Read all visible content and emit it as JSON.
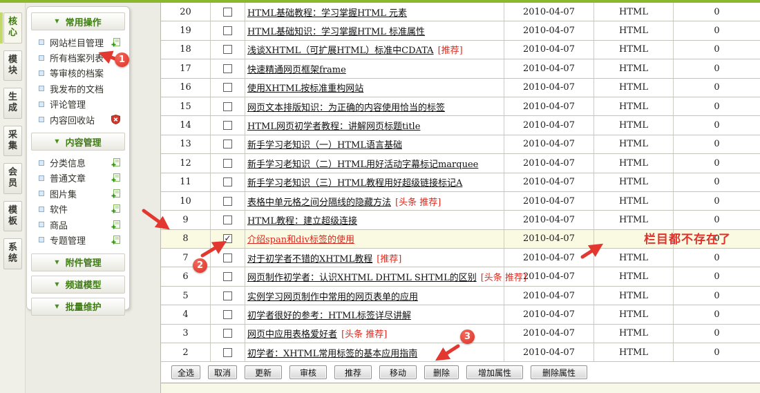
{
  "colors": {
    "top_bar_green": "#8bb82d",
    "sidebar_header_green": "#3e7c12",
    "annotation_red": "#e2382f",
    "badge_red": "#e02b1f",
    "red_link": "#d8281e",
    "highlight_row_bg": "#fafae3"
  },
  "icons": {
    "checkbox_check": "✓",
    "collapse_arrow": "▼"
  },
  "nav_tabs": [
    {
      "label": "核心",
      "active": true
    },
    {
      "label": "模块",
      "active": false
    },
    {
      "label": "生成",
      "active": false
    },
    {
      "label": "采集",
      "active": false
    },
    {
      "label": "会员",
      "active": false
    },
    {
      "label": "模板",
      "active": false
    },
    {
      "label": "系统",
      "active": false
    }
  ],
  "sidebar": {
    "sections": [
      {
        "title": "常用操作",
        "expanded": true,
        "items": [
          {
            "label": "网站栏目管理",
            "icon": "doc-add"
          },
          {
            "label": "所有档案列表",
            "icon": ""
          },
          {
            "label": "等审核的档案",
            "icon": ""
          },
          {
            "label": "我发布的文档",
            "icon": ""
          },
          {
            "label": "评论管理",
            "icon": ""
          },
          {
            "label": "内容回收站",
            "icon": "recycle-shield"
          }
        ]
      },
      {
        "title": "内容管理",
        "expanded": true,
        "items": [
          {
            "label": "分类信息",
            "icon": "doc-add"
          },
          {
            "label": "普通文章",
            "icon": "doc-add"
          },
          {
            "label": "图片集",
            "icon": "doc-add"
          },
          {
            "label": "软件",
            "icon": "doc-add"
          },
          {
            "label": "商品",
            "icon": "doc-add"
          },
          {
            "label": "专题管理",
            "icon": "doc-add"
          }
        ]
      },
      {
        "title": "附件管理",
        "expanded": false,
        "items": []
      },
      {
        "title": "频道模型",
        "expanded": false,
        "items": []
      },
      {
        "title": "批量维护",
        "expanded": false,
        "items": []
      }
    ]
  },
  "table": {
    "rows": [
      {
        "id": "20",
        "checked": false,
        "highlight": false,
        "red_title": false,
        "title": "HTML基础教程：学习掌握HTML 元素",
        "badge": "",
        "date": "2010-04-07",
        "channel": "HTML",
        "count": "0"
      },
      {
        "id": "19",
        "checked": false,
        "highlight": false,
        "red_title": false,
        "title": "HTML基础知识：学习掌握HTML 标准属性",
        "badge": "",
        "date": "2010-04-07",
        "channel": "HTML",
        "count": "0"
      },
      {
        "id": "18",
        "checked": false,
        "highlight": false,
        "red_title": false,
        "title": "浅谈XHTML（可扩展HTML）标准中CDATA",
        "badge": "[推荐]",
        "date": "2010-04-07",
        "channel": "HTML",
        "count": "0"
      },
      {
        "id": "17",
        "checked": false,
        "highlight": false,
        "red_title": false,
        "title": "快速精通网页框架frame",
        "badge": "",
        "date": "2010-04-07",
        "channel": "HTML",
        "count": "0"
      },
      {
        "id": "16",
        "checked": false,
        "highlight": false,
        "red_title": false,
        "title": "使用XHTML按标准重构网站",
        "badge": "",
        "date": "2010-04-07",
        "channel": "HTML",
        "count": "0"
      },
      {
        "id": "15",
        "checked": false,
        "highlight": false,
        "red_title": false,
        "title": "网页文本排版知识：为正确的内容使用恰当的标签",
        "badge": "",
        "date": "2010-04-07",
        "channel": "HTML",
        "count": "0"
      },
      {
        "id": "14",
        "checked": false,
        "highlight": false,
        "red_title": false,
        "title": "HTML网页初学者教程：讲解网页标题title",
        "badge": "",
        "date": "2010-04-07",
        "channel": "HTML",
        "count": "0"
      },
      {
        "id": "13",
        "checked": false,
        "highlight": false,
        "red_title": false,
        "title": "新手学习老知识（一）HTML语言基础",
        "badge": "",
        "date": "2010-04-07",
        "channel": "HTML",
        "count": "0"
      },
      {
        "id": "12",
        "checked": false,
        "highlight": false,
        "red_title": false,
        "title": "新手学习老知识（二）HTML用好活动字幕标记marquee",
        "badge": "",
        "date": "2010-04-07",
        "channel": "HTML",
        "count": "0"
      },
      {
        "id": "11",
        "checked": false,
        "highlight": false,
        "red_title": false,
        "title": "新手学习老知识（三）HTML教程用好超级链接标记A",
        "badge": "",
        "date": "2010-04-07",
        "channel": "HTML",
        "count": "0"
      },
      {
        "id": "10",
        "checked": false,
        "highlight": false,
        "red_title": false,
        "title": "表格中单元格之间分隔线的隐藏方法",
        "badge": "[头条 推荐]",
        "date": "2010-04-07",
        "channel": "HTML",
        "count": "0"
      },
      {
        "id": "9",
        "checked": false,
        "highlight": false,
        "red_title": false,
        "title": "HTML教程：建立超级连接",
        "badge": "",
        "date": "2010-04-07",
        "channel": "HTML",
        "count": "0"
      },
      {
        "id": "8",
        "checked": true,
        "highlight": true,
        "red_title": true,
        "title": "介绍span和div标签的使用",
        "badge": "",
        "date": "2010-04-07",
        "channel": "",
        "count": "0"
      },
      {
        "id": "7",
        "checked": false,
        "highlight": false,
        "red_title": false,
        "title": "对于初学者不错的XHTML教程",
        "badge": "[推荐]",
        "date": "2010-04-07",
        "channel": "HTML",
        "count": "0"
      },
      {
        "id": "6",
        "checked": false,
        "highlight": false,
        "red_title": false,
        "title": "网页制作初学者：认识XHTML DHTML SHTML的区别",
        "badge": "[头条 推荐]",
        "date": "2010-04-07",
        "channel": "HTML",
        "count": "0"
      },
      {
        "id": "5",
        "checked": false,
        "highlight": false,
        "red_title": false,
        "title": "实例学习网页制作中常用的网页表单的应用",
        "badge": "",
        "date": "2010-04-07",
        "channel": "HTML",
        "count": "0"
      },
      {
        "id": "4",
        "checked": false,
        "highlight": false,
        "red_title": false,
        "title": "初学者很好的参考：HTML标签详尽讲解",
        "badge": "",
        "date": "2010-04-07",
        "channel": "HTML",
        "count": "0"
      },
      {
        "id": "3",
        "checked": false,
        "highlight": false,
        "red_title": false,
        "title": "网页中应用表格爱好者",
        "badge": "[头条 推荐]",
        "date": "2010-04-07",
        "channel": "HTML",
        "count": "0"
      },
      {
        "id": "2",
        "checked": false,
        "highlight": false,
        "red_title": false,
        "title": "初学者：XHTML常用标签的基本应用指南",
        "badge": "",
        "date": "2010-04-07",
        "channel": "HTML",
        "count": "0"
      }
    ]
  },
  "toolbar": {
    "buttons": [
      "全选",
      "取消",
      "更新",
      "审核",
      "推荐",
      "移动",
      "删除",
      "增加属性",
      "删除属性"
    ]
  },
  "annotations": {
    "steps": [
      "1",
      "2",
      "3"
    ],
    "note": "栏目都不存在了"
  }
}
